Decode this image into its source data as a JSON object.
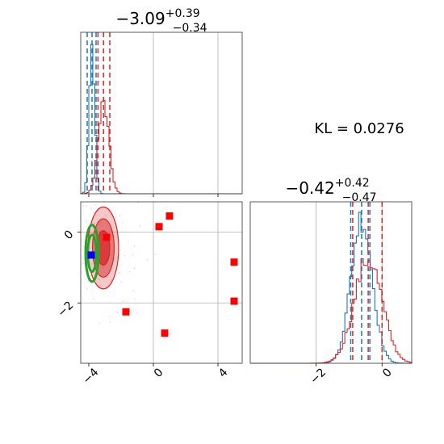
{
  "chart_data": {
    "type": "corner",
    "colors": {
      "blue": "#1f77b4",
      "red": "#d62728",
      "green": "#2ca02c",
      "marker_red": "#ff0000",
      "marker_blue": "#0000ff"
    },
    "kl_label": "KL = 0.0276",
    "param1": {
      "title_main": "−3.09",
      "title_sup": "+0.39",
      "title_sub": "−0.34",
      "range": [
        -4.5,
        5.5
      ],
      "ticks": [
        {
          "v": -4,
          "label": "−4"
        },
        {
          "v": 0,
          "label": "0"
        },
        {
          "v": 4,
          "label": "4"
        }
      ],
      "blue_quantiles": [
        -4.1,
        -3.8,
        -3.55
      ],
      "red_quantiles": [
        -3.43,
        -3.09,
        -2.7
      ],
      "blue_hist": {
        "mean": -3.8,
        "sd": 0.17,
        "peak": 1.0
      },
      "red_hist": {
        "mean": -3.09,
        "sd": 0.33,
        "peak": 0.62
      }
    },
    "param2": {
      "title_main": "−0.42",
      "title_sup": "+0.42",
      "title_sub": "−0.47",
      "range": [
        -4.0,
        0.9
      ],
      "ticks": [
        {
          "v": -2,
          "label": "−2"
        },
        {
          "v": 0,
          "label": "0"
        }
      ],
      "blue_quantiles": [
        -0.95,
        -0.62,
        -0.37
      ],
      "red_quantiles": [
        -0.89,
        -0.42,
        0.0
      ],
      "blue_hist": {
        "mean": -0.62,
        "sd": 0.32,
        "peak": 1.0
      },
      "red_hist": {
        "mean": -0.42,
        "sd": 0.42,
        "peak": 0.72
      }
    },
    "joint": {
      "y_range": [
        -3.7,
        0.85
      ],
      "y_ticks": [
        {
          "v": 0,
          "label": "0"
        },
        {
          "v": -2,
          "label": "−2"
        }
      ],
      "red_markers": [
        {
          "x": 1.0,
          "y": 0.45
        },
        {
          "x": 0.35,
          "y": 0.15
        },
        {
          "x": -2.9,
          "y": -0.15
        },
        {
          "x": 5.0,
          "y": -0.85
        },
        {
          "x": 5.0,
          "y": -1.95
        },
        {
          "x": -1.7,
          "y": -2.25
        },
        {
          "x": 0.7,
          "y": -2.85
        }
      ],
      "blue_marker": {
        "x": -3.85,
        "y": -0.65
      },
      "red_contour": {
        "cx": -3.1,
        "cy": -0.45,
        "rx": 0.9,
        "ry": 1.1
      },
      "green_contour": {
        "cx": -3.8,
        "cy": -0.6,
        "rx": 0.4,
        "ry": 0.8
      }
    }
  }
}
